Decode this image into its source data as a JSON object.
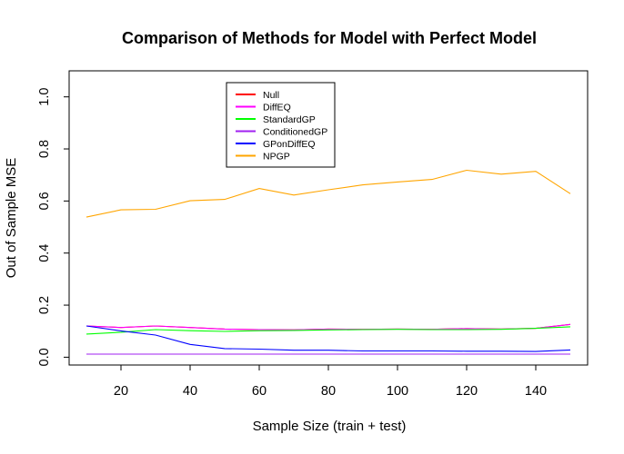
{
  "chart_data": {
    "type": "line",
    "title": "Comparison of Methods for Model with Perfect Model",
    "xlabel": "Sample Size (train + test)",
    "ylabel": "Out of Sample MSE",
    "xlim": [
      5,
      155
    ],
    "ylim": [
      -0.03,
      1.1
    ],
    "x_ticks": [
      20,
      40,
      60,
      80,
      100,
      120,
      140
    ],
    "y_ticks": [
      0.0,
      0.2,
      0.4,
      0.6,
      0.8,
      1.0
    ],
    "x_tick_labels": [
      "20",
      "40",
      "60",
      "80",
      "100",
      "120",
      "140"
    ],
    "y_tick_labels": [
      "0.0",
      "0.2",
      "0.4",
      "0.6",
      "0.8",
      "1.0"
    ],
    "legend_position": "top-left",
    "x": [
      10,
      20,
      30,
      40,
      50,
      60,
      70,
      80,
      90,
      100,
      110,
      120,
      130,
      140,
      150
    ],
    "series": [
      {
        "name": "Null",
        "color": "#ff0000",
        "values": [
          0.12,
          0.114,
          0.12,
          0.114,
          0.108,
          0.106,
          0.105,
          0.108,
          0.107,
          0.108,
          0.107,
          0.11,
          0.108,
          0.111,
          0.126
        ]
      },
      {
        "name": "DiffEQ",
        "color": "#ff00ff",
        "values": [
          0.12,
          0.114,
          0.12,
          0.114,
          0.108,
          0.106,
          0.105,
          0.108,
          0.107,
          0.108,
          0.107,
          0.11,
          0.108,
          0.111,
          0.126
        ]
      },
      {
        "name": "StandardGP",
        "color": "#00ff00",
        "values": [
          0.089,
          0.096,
          0.106,
          0.102,
          0.099,
          0.102,
          0.103,
          0.105,
          0.106,
          0.107,
          0.106,
          0.106,
          0.107,
          0.111,
          0.117
        ]
      },
      {
        "name": "ConditionedGP",
        "color": "#a020f0",
        "values": [
          0.012,
          0.012,
          0.012,
          0.012,
          0.012,
          0.012,
          0.012,
          0.012,
          0.012,
          0.012,
          0.012,
          0.012,
          0.012,
          0.012,
          0.012
        ]
      },
      {
        "name": "GPonDiffEQ",
        "color": "#0000ff",
        "values": [
          0.12,
          0.101,
          0.085,
          0.049,
          0.033,
          0.031,
          0.027,
          0.027,
          0.024,
          0.024,
          0.024,
          0.023,
          0.023,
          0.022,
          0.028
        ]
      },
      {
        "name": "NPGP",
        "color": "#ffa500",
        "values": [
          0.538,
          0.566,
          0.568,
          0.601,
          0.606,
          0.648,
          0.623,
          0.643,
          0.662,
          0.673,
          0.683,
          0.718,
          0.703,
          0.714,
          0.628
        ]
      }
    ]
  }
}
